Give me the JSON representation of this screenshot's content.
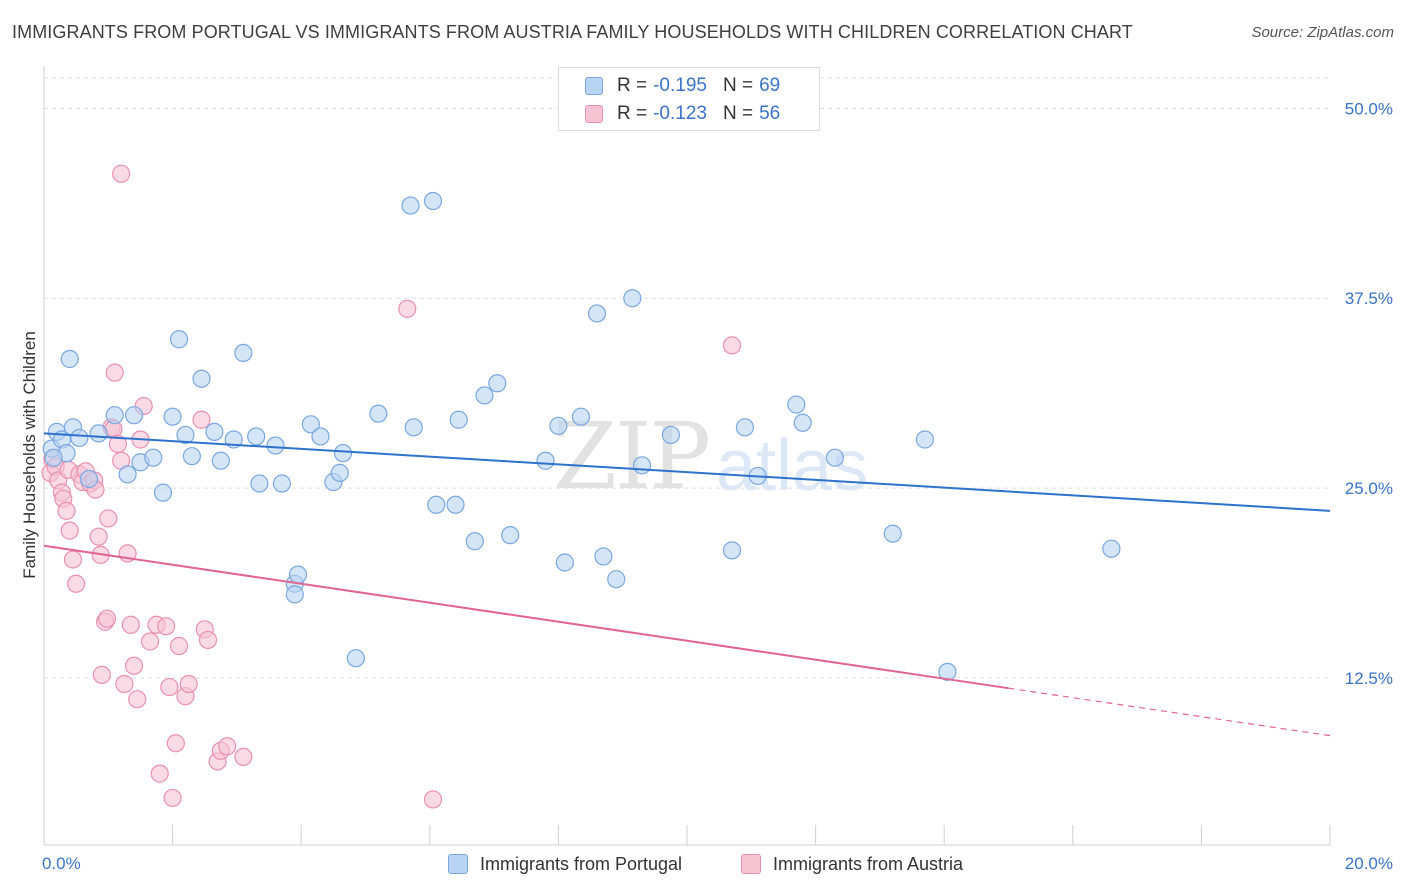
{
  "title": "IMMIGRANTS FROM PORTUGAL VS IMMIGRANTS FROM AUSTRIA FAMILY HOUSEHOLDS WITH CHILDREN CORRELATION CHART",
  "source": "Source: ZipAtlas.com",
  "watermark": {
    "zip": "ZIP",
    "atlas": "atlas"
  },
  "legend": {
    "r_label": "R =",
    "n_label": "N =",
    "portugal": {
      "r": "-0.195",
      "n": "69"
    },
    "austria": {
      "r": "-0.123",
      "n": "56"
    }
  },
  "colors": {
    "portugal_fill": "#b9d3f3",
    "portugal_stroke": "#7aa7e0",
    "portugal_line": "#2f72cc",
    "austria_fill": "#f6c3d3",
    "austria_stroke": "#e990b0",
    "austria_line": "#e06593",
    "tick_label": "#3a73c8",
    "grid": "#dddddd"
  },
  "chart_data": {
    "type": "scatter",
    "title": "IMMIGRANTS FROM PORTUGAL VS IMMIGRANTS FROM AUSTRIA FAMILY HOUSEHOLDS WITH CHILDREN CORRELATION CHART",
    "xlabel": "",
    "ylabel": "Family Households with Children",
    "xlim": [
      0,
      20
    ],
    "ylim": [
      1.5,
      52
    ],
    "x_tick_labels": [
      "0.0%",
      "20.0%"
    ],
    "y_ticks": [
      12.5,
      25.0,
      37.5,
      50.0
    ],
    "y_tick_labels": [
      "12.5%",
      "25.0%",
      "37.5%",
      "50.0%"
    ],
    "grid": "horizontal dashed",
    "legend_position": "top-center",
    "series": [
      {
        "name": "Immigrants from Portugal",
        "trend": {
          "x": [
            0,
            20
          ],
          "y": [
            28.6,
            23.5
          ],
          "x_end_solid": 20
        },
        "points": [
          [
            0.12,
            27.6
          ],
          [
            0.2,
            28.7
          ],
          [
            0.28,
            28.2
          ],
          [
            0.35,
            27.3
          ],
          [
            0.45,
            29.0
          ],
          [
            0.55,
            28.3
          ],
          [
            0.7,
            25.6
          ],
          [
            0.85,
            28.6
          ],
          [
            1.1,
            29.8
          ],
          [
            1.3,
            25.9
          ],
          [
            1.4,
            29.8
          ],
          [
            1.5,
            26.7
          ],
          [
            1.7,
            27.0
          ],
          [
            1.85,
            24.7
          ],
          [
            2.0,
            29.7
          ],
          [
            2.2,
            28.5
          ],
          [
            2.3,
            27.1
          ],
          [
            2.1,
            34.8
          ],
          [
            2.45,
            32.2
          ],
          [
            2.75,
            26.8
          ],
          [
            2.65,
            28.7
          ],
          [
            2.95,
            28.2
          ],
          [
            3.1,
            33.9
          ],
          [
            3.3,
            28.4
          ],
          [
            3.35,
            25.3
          ],
          [
            3.6,
            27.8
          ],
          [
            3.7,
            25.3
          ],
          [
            3.9,
            18.7
          ],
          [
            3.95,
            19.3
          ],
          [
            3.9,
            18.0
          ],
          [
            4.15,
            29.2
          ],
          [
            4.3,
            28.4
          ],
          [
            4.5,
            25.4
          ],
          [
            4.6,
            26.0
          ],
          [
            4.65,
            27.3
          ],
          [
            4.85,
            13.8
          ],
          [
            5.2,
            29.9
          ],
          [
            5.7,
            43.6
          ],
          [
            5.75,
            29.0
          ],
          [
            6.05,
            43.9
          ],
          [
            6.1,
            23.9
          ],
          [
            6.4,
            23.9
          ],
          [
            6.45,
            29.5
          ],
          [
            6.7,
            21.5
          ],
          [
            6.85,
            31.1
          ],
          [
            7.05,
            31.9
          ],
          [
            7.25,
            21.9
          ],
          [
            7.8,
            26.8
          ],
          [
            8.0,
            29.1
          ],
          [
            8.1,
            20.1
          ],
          [
            8.35,
            29.7
          ],
          [
            8.6,
            36.5
          ],
          [
            8.7,
            20.5
          ],
          [
            8.9,
            19.0
          ],
          [
            9.15,
            37.5
          ],
          [
            9.3,
            26.5
          ],
          [
            9.75,
            28.5
          ],
          [
            10.7,
            20.9
          ],
          [
            10.9,
            29.0
          ],
          [
            11.1,
            25.8
          ],
          [
            11.7,
            30.5
          ],
          [
            11.8,
            29.3
          ],
          [
            12.3,
            27.0
          ],
          [
            13.2,
            22.0
          ],
          [
            13.7,
            28.2
          ],
          [
            14.05,
            12.9
          ],
          [
            16.6,
            21.0
          ],
          [
            0.15,
            27.0
          ],
          [
            0.4,
            33.5
          ]
        ]
      },
      {
        "name": "Immigrants from Austria",
        "trend": {
          "x": [
            0,
            20
          ],
          "y": [
            21.2,
            8.7
          ],
          "x_end_solid": 15
        },
        "points": [
          [
            0.1,
            26.0
          ],
          [
            0.13,
            26.9
          ],
          [
            0.18,
            26.4
          ],
          [
            0.22,
            25.5
          ],
          [
            0.28,
            24.7
          ],
          [
            0.3,
            24.3
          ],
          [
            0.35,
            23.5
          ],
          [
            0.38,
            26.2
          ],
          [
            0.4,
            22.2
          ],
          [
            0.45,
            20.3
          ],
          [
            0.5,
            18.7
          ],
          [
            0.55,
            25.9
          ],
          [
            0.6,
            25.4
          ],
          [
            0.65,
            26.1
          ],
          [
            0.72,
            25.3
          ],
          [
            0.78,
            25.5
          ],
          [
            0.8,
            24.9
          ],
          [
            0.85,
            21.8
          ],
          [
            0.88,
            20.6
          ],
          [
            0.95,
            16.2
          ],
          [
            0.98,
            16.4
          ],
          [
            1.0,
            23.0
          ],
          [
            1.05,
            29.0
          ],
          [
            1.08,
            28.9
          ],
          [
            1.1,
            32.6
          ],
          [
            1.15,
            27.9
          ],
          [
            1.2,
            26.8
          ],
          [
            1.25,
            12.1
          ],
          [
            1.3,
            20.7
          ],
          [
            1.35,
            16.0
          ],
          [
            1.4,
            13.3
          ],
          [
            1.45,
            11.1
          ],
          [
            1.5,
            28.2
          ],
          [
            1.55,
            30.4
          ],
          [
            1.65,
            14.9
          ],
          [
            1.75,
            16.0
          ],
          [
            1.8,
            6.2
          ],
          [
            1.9,
            15.9
          ],
          [
            1.95,
            11.9
          ],
          [
            2.0,
            4.6
          ],
          [
            2.05,
            8.2
          ],
          [
            2.1,
            14.6
          ],
          [
            2.2,
            11.3
          ],
          [
            2.25,
            12.1
          ],
          [
            2.45,
            29.5
          ],
          [
            2.5,
            15.7
          ],
          [
            2.55,
            15.0
          ],
          [
            2.7,
            7.0
          ],
          [
            2.75,
            7.7
          ],
          [
            2.85,
            8.0
          ],
          [
            3.1,
            7.3
          ],
          [
            5.65,
            36.8
          ],
          [
            6.05,
            4.5
          ],
          [
            10.7,
            34.4
          ],
          [
            1.2,
            45.7
          ],
          [
            0.9,
            12.7
          ]
        ]
      }
    ]
  },
  "axes": {
    "x_left_label": "0.0%",
    "x_right_label": "20.0%",
    "y_labels": [
      "12.5%",
      "25.0%",
      "37.5%",
      "50.0%"
    ]
  }
}
